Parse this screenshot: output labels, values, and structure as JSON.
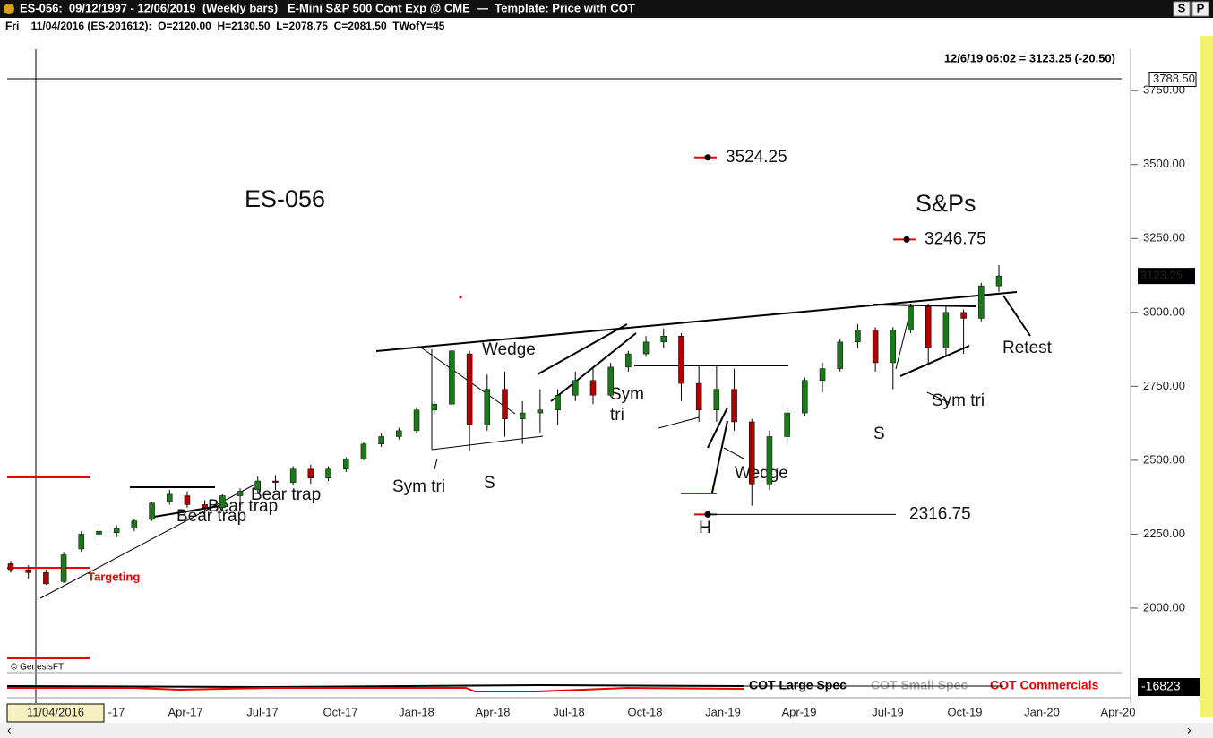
{
  "window": {
    "title": "ES-056:  09/12/1997 - 12/06/2019  (Weekly bars)   E-Mini S&P 500 Cont Exp @ CME  —  Template: Price with COT",
    "bar_info": "Fri    11/04/2016 (ES-201612):  O=2120.00  H=2130.50  L=2078.75  C=2081.50  TWofY=45",
    "buttons": [
      "S",
      "P"
    ],
    "copyright": "© GenesisFT"
  },
  "chart_data": {
    "type": "candlestick",
    "last_quote": "12/6/19 06:02 = 3123.25 (-20.50)",
    "ylim": [
      1800,
      3890
    ],
    "yticks": [
      {
        "value": 2000,
        "label": "2000.00"
      },
      {
        "value": 2250,
        "label": "2250.00"
      },
      {
        "value": 2500,
        "label": "2500.00"
      },
      {
        "value": 2750,
        "label": "2750.00"
      },
      {
        "value": 3000,
        "label": "3000.00"
      },
      {
        "value": 3250,
        "label": "3250.00"
      },
      {
        "value": 3500,
        "label": "3500.00"
      },
      {
        "value": 3750,
        "label": "3750.00"
      }
    ],
    "high_marker": {
      "value": 3788.5,
      "label": "3788.50"
    },
    "last_price": 3123.25,
    "categories": [
      "11/04/2016",
      "-17",
      "Apr-17",
      "Jul-17",
      "Oct-17",
      "Jan-18",
      "Apr-18",
      "Jul-18",
      "Oct-18",
      "Jan-19",
      "Apr-19",
      "Jul-19",
      "Oct-19",
      "Jan-20",
      "Apr-20"
    ],
    "up_color": "#1a7a1a",
    "down_color": "#b00000",
    "candles": [
      [
        2150,
        2160,
        2120,
        2130
      ],
      [
        2130,
        2145,
        2100,
        2120
      ],
      [
        2120,
        2130,
        2079,
        2082
      ],
      [
        2090,
        2190,
        2085,
        2180
      ],
      [
        2200,
        2260,
        2190,
        2250
      ],
      [
        2250,
        2275,
        2235,
        2260
      ],
      [
        2255,
        2280,
        2240,
        2270
      ],
      [
        2270,
        2300,
        2260,
        2295
      ],
      [
        2300,
        2360,
        2295,
        2355
      ],
      [
        2360,
        2400,
        2350,
        2385
      ],
      [
        2380,
        2395,
        2340,
        2350
      ],
      [
        2350,
        2365,
        2320,
        2340
      ],
      [
        2340,
        2385,
        2330,
        2380
      ],
      [
        2380,
        2405,
        2345,
        2395
      ],
      [
        2400,
        2445,
        2390,
        2430
      ],
      [
        2430,
        2450,
        2400,
        2425
      ],
      [
        2425,
        2480,
        2415,
        2470
      ],
      [
        2470,
        2485,
        2420,
        2440
      ],
      [
        2440,
        2480,
        2430,
        2470
      ],
      [
        2470,
        2510,
        2460,
        2505
      ],
      [
        2505,
        2560,
        2500,
        2555
      ],
      [
        2555,
        2590,
        2545,
        2580
      ],
      [
        2580,
        2610,
        2570,
        2600
      ],
      [
        2600,
        2680,
        2590,
        2670
      ],
      [
        2670,
        2700,
        2655,
        2690
      ],
      [
        2690,
        2880,
        2685,
        2870
      ],
      [
        2860,
        2870,
        2530,
        2620
      ],
      [
        2620,
        2790,
        2600,
        2740
      ],
      [
        2740,
        2800,
        2580,
        2640
      ],
      [
        2640,
        2700,
        2555,
        2660
      ],
      [
        2660,
        2740,
        2590,
        2670
      ],
      [
        2670,
        2740,
        2620,
        2720
      ],
      [
        2720,
        2800,
        2700,
        2770
      ],
      [
        2770,
        2810,
        2690,
        2720
      ],
      [
        2720,
        2830,
        2715,
        2815
      ],
      [
        2815,
        2870,
        2800,
        2860
      ],
      [
        2860,
        2920,
        2850,
        2900
      ],
      [
        2900,
        2945,
        2880,
        2920
      ],
      [
        2920,
        2930,
        2700,
        2760
      ],
      [
        2760,
        2820,
        2630,
        2670
      ],
      [
        2670,
        2820,
        2630,
        2740
      ],
      [
        2740,
        2810,
        2600,
        2630
      ],
      [
        2630,
        2640,
        2346,
        2420
      ],
      [
        2420,
        2600,
        2400,
        2580
      ],
      [
        2580,
        2680,
        2560,
        2660
      ],
      [
        2660,
        2780,
        2650,
        2770
      ],
      [
        2770,
        2830,
        2730,
        2810
      ],
      [
        2810,
        2910,
        2800,
        2900
      ],
      [
        2900,
        2960,
        2880,
        2940
      ],
      [
        2940,
        2950,
        2800,
        2830
      ],
      [
        2830,
        2950,
        2740,
        2940
      ],
      [
        2940,
        3030,
        2930,
        3020
      ],
      [
        3020,
        3030,
        2820,
        2880
      ],
      [
        2880,
        3020,
        2850,
        3000
      ],
      [
        3000,
        3010,
        2860,
        2980
      ],
      [
        2980,
        3100,
        2970,
        3090
      ],
      [
        3090,
        3160,
        3070,
        3123.25
      ]
    ],
    "price_targets": [
      3524.25,
      3246.75,
      2316.75
    ],
    "annotations": [
      "ES-056",
      "S&Ps",
      "Wedge",
      "Wedge",
      "Sym tri",
      "Sym",
      "tri",
      "Sym tri",
      "Bear trap",
      "Bear trap",
      "Bear trap",
      "S",
      "S",
      "H",
      "Retest",
      "Targeting"
    ],
    "cot_legend": [
      "COT Large Spec",
      "COT Small Spec",
      "COT Commercials"
    ],
    "cot_last": -16823
  }
}
